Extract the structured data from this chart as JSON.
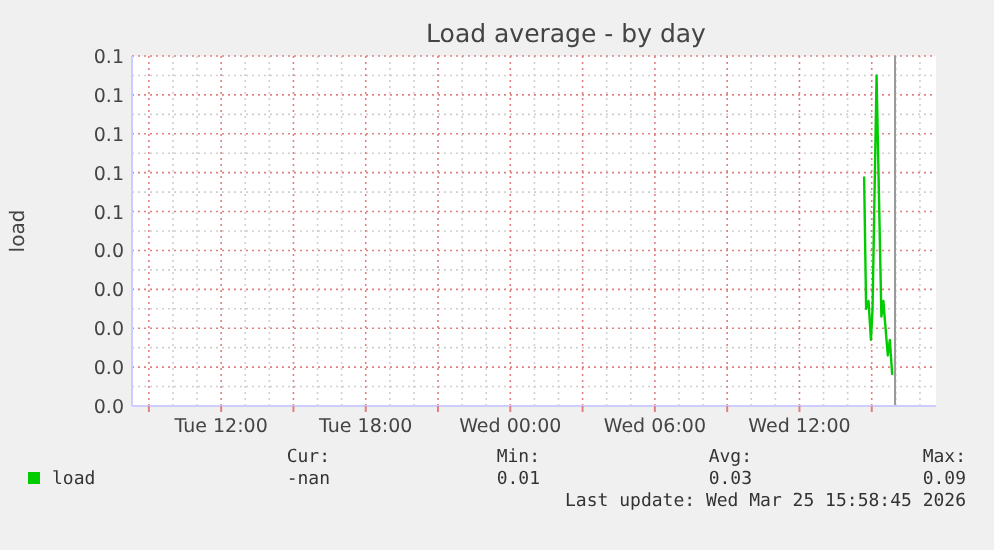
{
  "chart_data": {
    "type": "line",
    "title": "Load average - by day",
    "ylabel": "load",
    "xlim": [
      "2026-03-24T08:18",
      "2026-03-25T17:40"
    ],
    "xticks": [
      {
        "value": "2026-03-24T09:00",
        "label": null
      },
      {
        "value": "2026-03-24T12:00",
        "label": "Tue 12:00"
      },
      {
        "value": "2026-03-24T15:00",
        "label": null
      },
      {
        "value": "2026-03-24T18:00",
        "label": "Tue 18:00"
      },
      {
        "value": "2026-03-24T21:00",
        "label": null
      },
      {
        "value": "2026-03-25T00:00",
        "label": "Wed 00:00"
      },
      {
        "value": "2026-03-25T03:00",
        "label": null
      },
      {
        "value": "2026-03-25T06:00",
        "label": "Wed 06:00"
      },
      {
        "value": "2026-03-25T09:00",
        "label": null
      },
      {
        "value": "2026-03-25T12:00",
        "label": "Wed 12:00"
      },
      {
        "value": "2026-03-25T15:00",
        "label": null
      }
    ],
    "ylim": [
      0,
      0.09
    ],
    "yticks": [
      {
        "value": 0,
        "label": "0.0"
      },
      {
        "value": 0.01,
        "label": "0.0"
      },
      {
        "value": 0.02,
        "label": "0.0"
      },
      {
        "value": 0.03,
        "label": "0.0"
      },
      {
        "value": 0.04,
        "label": "0.0"
      },
      {
        "value": 0.05,
        "label": "0.1"
      },
      {
        "value": 0.06,
        "label": "0.1"
      },
      {
        "value": 0.07,
        "label": "0.1"
      },
      {
        "value": 0.08,
        "label": "0.1"
      },
      {
        "value": 0.09,
        "label": "0.1"
      }
    ],
    "grid": true,
    "legend": "bottom left",
    "marker": "none",
    "line_style": "solid",
    "x": [
      "2026-03-25T14:41",
      "2026-03-25T14:46",
      "2026-03-25T14:52",
      "2026-03-25T14:58",
      "2026-03-25T15:02",
      "2026-03-25T15:12",
      "2026-03-25T15:24",
      "2026-03-25T15:29",
      "2026-03-25T15:32",
      "2026-03-25T15:40",
      "2026-03-25T15:45",
      "2026-03-25T15:51"
    ],
    "series": [
      {
        "name": "load",
        "color": "#00cc00",
        "values": [
          0.059,
          0.025,
          0.027,
          0.017,
          0.025,
          0.085,
          0.023,
          0.027,
          0.023,
          0.013,
          0.017,
          0.008
        ]
      }
    ],
    "ref_lines": [
      {
        "axis": "x",
        "value": "2026-03-25T15:58",
        "label": null,
        "color": "#999999",
        "line_style": "solid"
      }
    ],
    "annotations": [
      "Cur:",
      "Min:",
      "Avg:",
      "Max:",
      "-nan",
      "0.01",
      "0.03",
      "0.09",
      "Last update: Wed Mar 25 15:58:45 2026"
    ]
  }
}
